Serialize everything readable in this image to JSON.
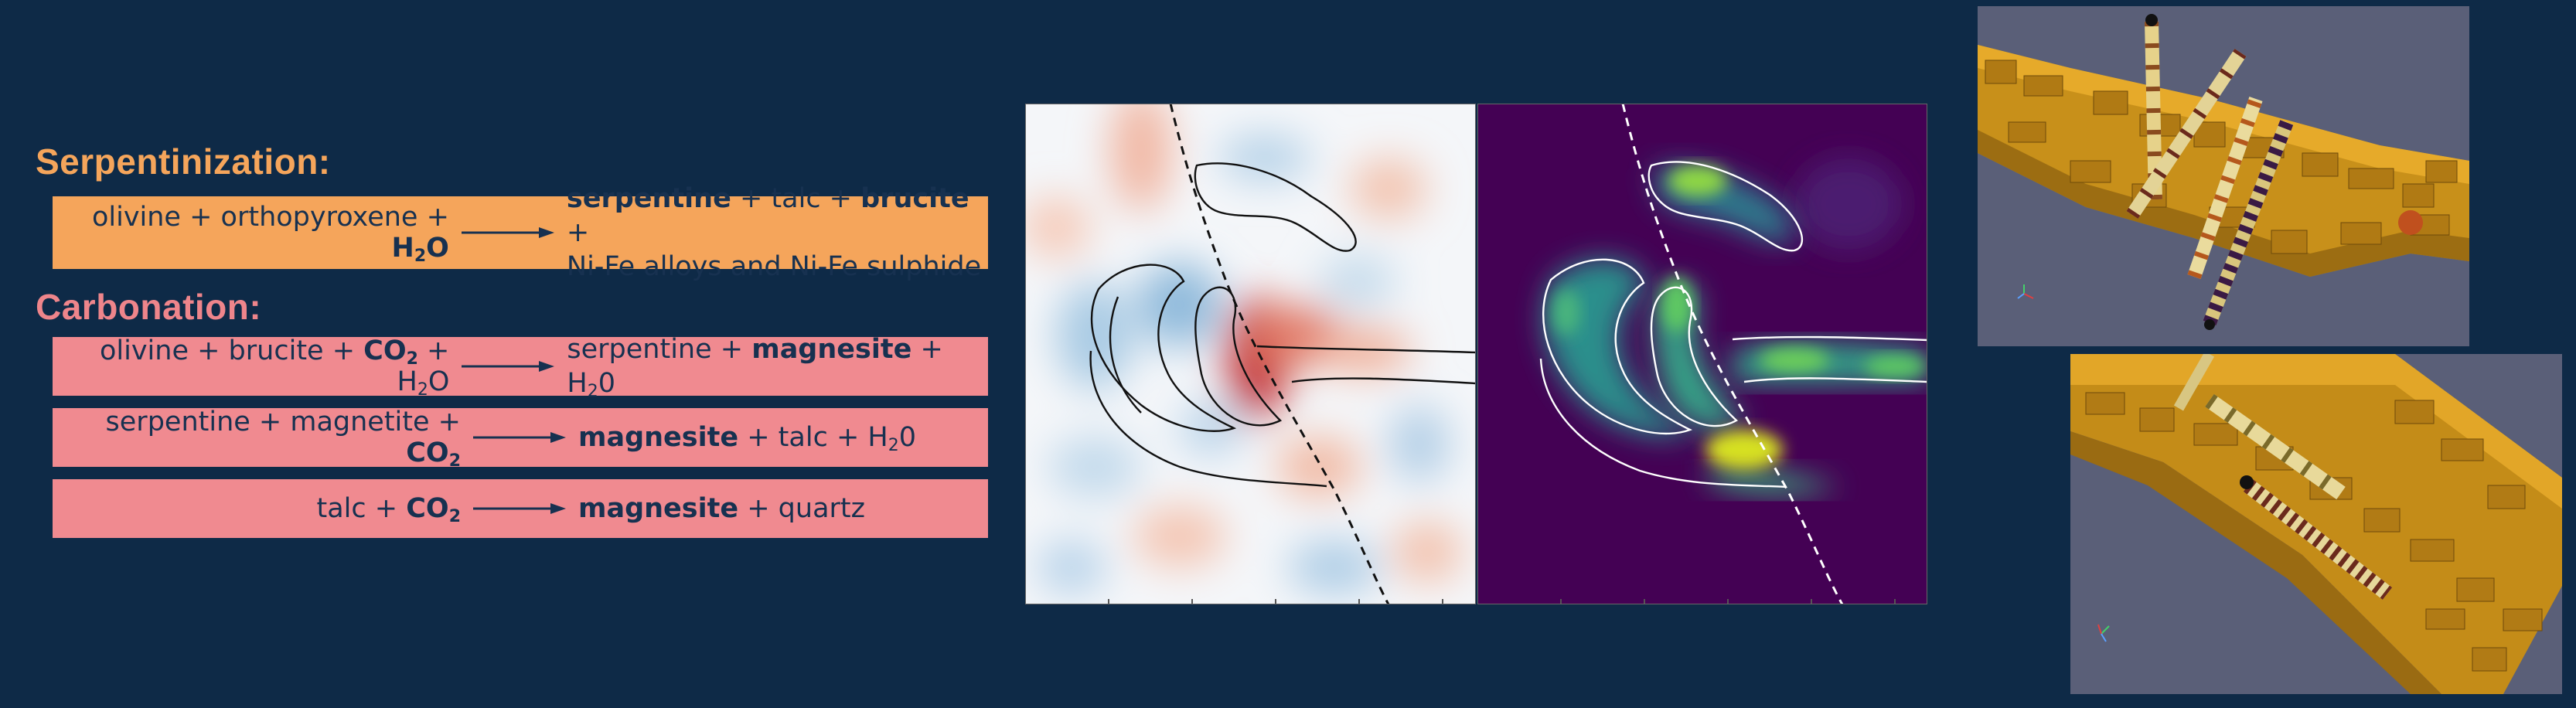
{
  "serpentinization": {
    "heading": "Serpentinization:",
    "lhs": [
      "olivine + orthopyroxene + ",
      "H",
      "2",
      "O"
    ],
    "rhs_line1": [
      "serpentine",
      " + talc + ",
      "brucite",
      " +"
    ],
    "rhs_line2": "Ni-Fe alloys and Ni-Fe sulphide"
  },
  "carbonation": {
    "heading": "Carbonation:",
    "reactions": [
      {
        "lhs": [
          "olivine + brucite + ",
          "CO",
          "2",
          " + H",
          "2",
          "O"
        ],
        "rhs": [
          "serpentine + ",
          "magnesite",
          " + H",
          "2",
          "0"
        ]
      },
      {
        "lhs": [
          "serpentine + magnetite + ",
          "CO",
          "2"
        ],
        "rhs": [
          "magnesite",
          " + talc + H",
          "2",
          "0"
        ]
      },
      {
        "lhs": [
          "talc + ",
          "CO",
          "2"
        ],
        "rhs": [
          "magnesite",
          " + quartz"
        ]
      }
    ]
  },
  "colors": {
    "background": "#0e2a47",
    "serpentinization": "#f5a55b",
    "carbonation": "#ee858b",
    "voxel": "#d49a1c"
  }
}
